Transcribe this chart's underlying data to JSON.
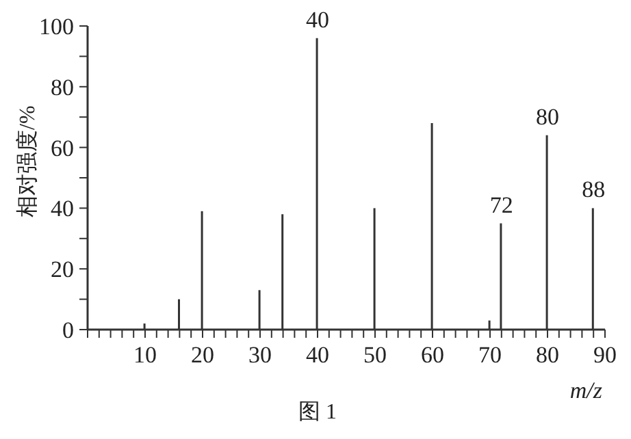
{
  "chart_data": {
    "type": "bar",
    "xlabel": "m/z",
    "ylabel": "相对强度/%",
    "annotations": [
      "图 1",
      {
        "text": "40",
        "x": 40,
        "y": 96
      },
      {
        "text": "72",
        "x": 72,
        "y": 35
      },
      {
        "text": "80",
        "x": 80,
        "y": 64
      },
      {
        "text": "88",
        "x": 88,
        "y": 40
      }
    ],
    "x": [
      10,
      16,
      20,
      30,
      34,
      40,
      50,
      60,
      70,
      72,
      80,
      88
    ],
    "values": [
      2,
      10,
      39,
      13,
      38,
      96,
      40,
      68,
      3,
      35,
      64,
      40
    ],
    "color": "#333333",
    "xlim": [
      0,
      90
    ],
    "xticks": [
      {
        "value": 0,
        "label": null
      },
      {
        "value": 2,
        "label": null
      },
      {
        "value": 4,
        "label": null
      },
      {
        "value": 6,
        "label": null
      },
      {
        "value": 8,
        "label": null
      },
      10,
      {
        "value": 12,
        "label": null
      },
      {
        "value": 14,
        "label": null
      },
      {
        "value": 16,
        "label": null
      },
      {
        "value": 18,
        "label": null
      },
      20,
      {
        "value": 22,
        "label": null
      },
      {
        "value": 24,
        "label": null
      },
      {
        "value": 26,
        "label": null
      },
      {
        "value": 28,
        "label": null
      },
      30,
      {
        "value": 32,
        "label": null
      },
      {
        "value": 34,
        "label": null
      },
      {
        "value": 36,
        "label": null
      },
      {
        "value": 38,
        "label": null
      },
      40,
      {
        "value": 42,
        "label": null
      },
      {
        "value": 44,
        "label": null
      },
      {
        "value": 46,
        "label": null
      },
      {
        "value": 48,
        "label": null
      },
      50,
      {
        "value": 52,
        "label": null
      },
      {
        "value": 54,
        "label": null
      },
      {
        "value": 56,
        "label": null
      },
      {
        "value": 58,
        "label": null
      },
      60,
      {
        "value": 62,
        "label": null
      },
      {
        "value": 64,
        "label": null
      },
      {
        "value": 66,
        "label": null
      },
      {
        "value": 68,
        "label": null
      },
      70,
      {
        "value": 72,
        "label": null
      },
      {
        "value": 74,
        "label": null
      },
      {
        "value": 76,
        "label": null
      },
      {
        "value": 78,
        "label": null
      },
      80,
      {
        "value": 82,
        "label": null
      },
      {
        "value": 84,
        "label": null
      },
      {
        "value": 86,
        "label": null
      },
      {
        "value": 88,
        "label": null
      },
      90
    ],
    "ylim": [
      0,
      100
    ],
    "yticks": [
      0,
      {
        "value": 10,
        "label": null
      },
      20,
      {
        "value": 30,
        "label": null
      },
      40,
      {
        "value": 50,
        "label": null
      },
      60,
      {
        "value": 70,
        "label": null
      },
      80,
      {
        "value": 90,
        "label": null
      },
      100
    ],
    "grid": false,
    "legend": false
  }
}
